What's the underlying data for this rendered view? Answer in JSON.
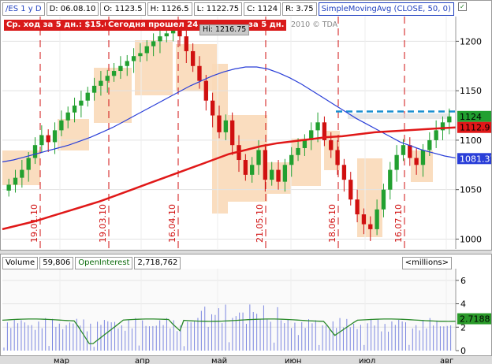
{
  "header": {
    "symbol": "/ES 1 y D",
    "date": "D: 06.08.10",
    "open": "O: 1123.5",
    "high": "H: 1126.5",
    "low": "L: 1122.75",
    "close": "C: 1124",
    "range": "R: 3.75",
    "study": "SimpleMovingAvg (CLOSE, 50, 0)"
  },
  "annotations": {
    "move5": "Ср. ход за 5 дн.: $15.6",
    "today": "Сегодня прошел 24",
    "today_tail": "за 5 дн.",
    "hi_label": "Hi: 1216.75",
    "copyright": "2010 © TDA"
  },
  "vertical_dates": [
    "19.01.10",
    "19.03.10",
    "16.04.10",
    "21.05.10",
    "18.06.10",
    "16.07.10"
  ],
  "price_axis": {
    "ticks": [
      "1200",
      "1150",
      "1100",
      "1050",
      "1000"
    ],
    "current_badge": "1124",
    "sma_red_badge": "1112.9",
    "sma_blue_badge": "1081.37"
  },
  "volume_pane": {
    "volume_label": "Volume",
    "volume_value": "59,806",
    "oi_label": "OpenInterest",
    "oi_value": "2,718,762",
    "units": "<millions>",
    "ticks": [
      "6",
      "4",
      "2",
      "0"
    ],
    "oi_badge": "2.7188"
  },
  "time_axis": [
    "мар",
    "апр",
    "май",
    "июн",
    "июл",
    "авг"
  ],
  "colors": {
    "up": "#22a030",
    "down": "#d01010",
    "sma_red": "#e01818",
    "sma_blue": "#2a3fd8",
    "profile": "#f9d9b8",
    "volume_bar": "#7b86e0",
    "oi_line": "#2a8a2a"
  },
  "chart_data": {
    "type": "line",
    "title": "",
    "ylim": [
      990,
      1225
    ],
    "series": [
      {
        "values": [
          1055,
          1062,
          1070,
          1082,
          1095,
          1105,
          1098,
          1110,
          1120,
          1128,
          1135,
          1140,
          1148,
          1155,
          1160,
          1165,
          1170,
          1175,
          1180,
          1185,
          1188,
          1195,
          1200,
          1205,
          1208,
          1212,
          1205,
          1190,
          1175,
          1160,
          1140,
          1125,
          1108,
          1120,
          1095,
          1080,
          1065,
          1075,
          1090,
          1060,
          1070,
          1058,
          1075,
          1085,
          1092,
          1100,
          1110,
          1118,
          1100,
          1090,
          1075,
          1060,
          1040,
          1025,
          1015,
          1010,
          1030,
          1050,
          1070,
          1085,
          1095,
          1082,
          1075,
          1090,
          1100,
          1110,
          1118,
          1124
        ]
      },
      {
        "values": [
          1078,
          1080,
          1083,
          1086,
          1089,
          1092,
          1095,
          1099,
          1103,
          1108,
          1113,
          1119,
          1125,
          1131,
          1137,
          1143,
          1149,
          1155,
          1160,
          1165,
          1169,
          1172,
          1174,
          1174,
          1172,
          1168,
          1163,
          1157,
          1150,
          1143,
          1136,
          1129,
          1122,
          1116,
          1110,
          1104,
          1098,
          1094,
          1090,
          1087,
          1084,
          1082
        ]
      },
      {
        "values": [
          1010,
          1014,
          1018,
          1023,
          1028,
          1033,
          1038,
          1044,
          1050,
          1056,
          1062,
          1068,
          1074,
          1080,
          1086,
          1090,
          1094,
          1097,
          1099,
          1101,
          1103,
          1104,
          1106,
          1108,
          1109,
          1110,
          1111,
          1112,
          1112.9
        ]
      }
    ]
  }
}
